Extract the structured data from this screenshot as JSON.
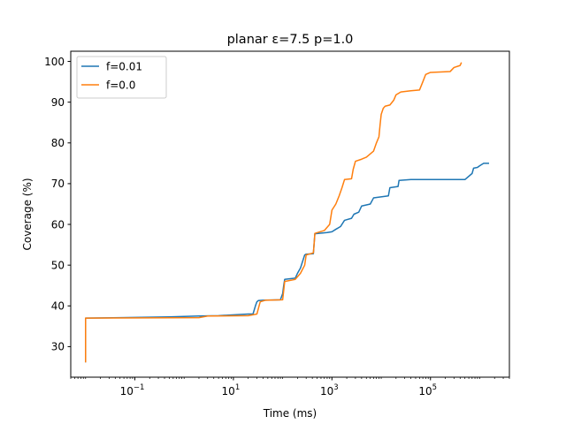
{
  "chart_data": {
    "type": "line",
    "title": "planar ε=7.5 p=1.0",
    "xlabel": "Time (ms)",
    "ylabel": "Coverage (%)",
    "xscale": "log",
    "xlim": [
      0.005,
      4000000
    ],
    "ylim": [
      22.5,
      102.5
    ],
    "xticks": [
      {
        "value": 0.1,
        "base": "10",
        "exp": "−1"
      },
      {
        "value": 10,
        "base": "10",
        "exp": "1"
      },
      {
        "value": 1000,
        "base": "10",
        "exp": "3"
      },
      {
        "value": 100000,
        "base": "10",
        "exp": "5"
      }
    ],
    "yticks": [
      30,
      40,
      50,
      60,
      70,
      80,
      90,
      100
    ],
    "legend": "upper left",
    "grid": false,
    "series": [
      {
        "name": "f=0.01",
        "color": "#1f77b4",
        "points": [
          [
            0.01,
            26.3
          ],
          [
            0.01,
            37.0
          ],
          [
            0.05,
            37.1
          ],
          [
            0.5,
            37.3
          ],
          [
            2,
            37.5
          ],
          [
            5,
            37.6
          ],
          [
            20,
            38.0
          ],
          [
            25,
            38.0
          ],
          [
            28,
            40.0
          ],
          [
            30,
            41.0
          ],
          [
            32,
            41.3
          ],
          [
            40,
            41.4
          ],
          [
            90,
            41.5
          ],
          [
            100,
            43.0
          ],
          [
            105,
            45.0
          ],
          [
            110,
            46.5
          ],
          [
            180,
            46.8
          ],
          [
            200,
            48.0
          ],
          [
            230,
            49.3
          ],
          [
            280,
            52.5
          ],
          [
            300,
            52.7
          ],
          [
            420,
            52.8
          ],
          [
            450,
            57.7
          ],
          [
            800,
            58.0
          ],
          [
            1000,
            58.2
          ],
          [
            1200,
            58.8
          ],
          [
            1500,
            59.5
          ],
          [
            1800,
            61.0
          ],
          [
            2500,
            61.5
          ],
          [
            2800,
            62.5
          ],
          [
            3500,
            63.0
          ],
          [
            4000,
            64.5
          ],
          [
            6000,
            65.0
          ],
          [
            7000,
            66.5
          ],
          [
            14000,
            67.0
          ],
          [
            15000,
            69.0
          ],
          [
            22000,
            69.3
          ],
          [
            23000,
            70.8
          ],
          [
            40000,
            71.0
          ],
          [
            500000,
            71.0
          ],
          [
            700000,
            72.5
          ],
          [
            750000,
            73.8
          ],
          [
            900000,
            74.0
          ],
          [
            1000000,
            74.4
          ],
          [
            1200000,
            75.0
          ],
          [
            1500000,
            75.0
          ]
        ]
      },
      {
        "name": "f=0.0",
        "color": "#ff7f0e",
        "points": [
          [
            0.01,
            26.3
          ],
          [
            0.01,
            37.0
          ],
          [
            2,
            37.1
          ],
          [
            3,
            37.5
          ],
          [
            20,
            37.6
          ],
          [
            30,
            38.0
          ],
          [
            35,
            41.0
          ],
          [
            45,
            41.4
          ],
          [
            100,
            41.5
          ],
          [
            110,
            46.0
          ],
          [
            180,
            46.5
          ],
          [
            230,
            48.0
          ],
          [
            280,
            50.0
          ],
          [
            300,
            52.5
          ],
          [
            420,
            53.0
          ],
          [
            440,
            56.0
          ],
          [
            450,
            57.8
          ],
          [
            700,
            58.5
          ],
          [
            900,
            60.0
          ],
          [
            1000,
            63.5
          ],
          [
            1200,
            65.0
          ],
          [
            1400,
            67.0
          ],
          [
            1600,
            69.0
          ],
          [
            1800,
            71.0
          ],
          [
            2500,
            71.2
          ],
          [
            2700,
            73.5
          ],
          [
            3000,
            75.5
          ],
          [
            4000,
            76.0
          ],
          [
            5000,
            76.5
          ],
          [
            7000,
            78.0
          ],
          [
            8000,
            80.0
          ],
          [
            9000,
            81.5
          ],
          [
            9500,
            84.5
          ],
          [
            10000,
            87.0
          ],
          [
            11000,
            88.5
          ],
          [
            12000,
            89.0
          ],
          [
            15000,
            89.3
          ],
          [
            18000,
            90.5
          ],
          [
            20000,
            91.8
          ],
          [
            25000,
            92.5
          ],
          [
            40000,
            92.8
          ],
          [
            60000,
            93.0
          ],
          [
            70000,
            95.0
          ],
          [
            80000,
            96.8
          ],
          [
            100000,
            97.3
          ],
          [
            250000,
            97.5
          ],
          [
            300000,
            98.5
          ],
          [
            400000,
            99.0
          ],
          [
            420000,
            99.6
          ]
        ]
      }
    ]
  }
}
